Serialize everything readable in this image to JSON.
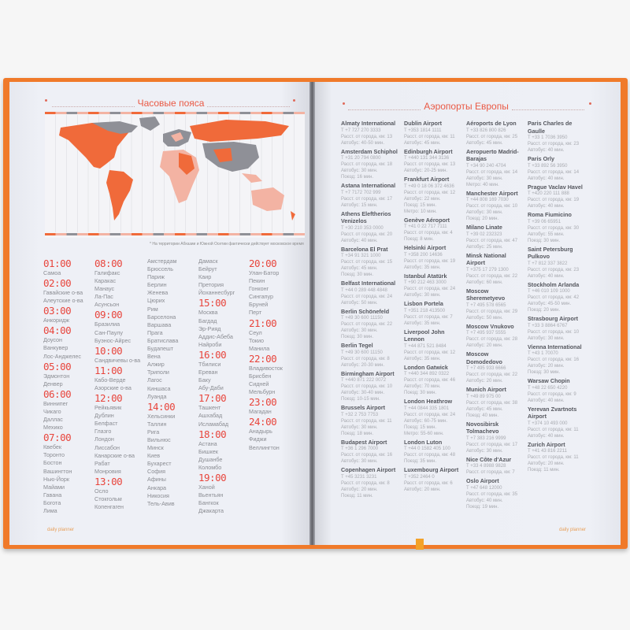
{
  "left_page": {
    "title": "Часовые пояса",
    "footnote": "* На территории Абхазии и Южной Осетии фактически действует московское время",
    "footer": "daily planner",
    "colors": {
      "accent": "#e8453c",
      "map_orange": "#f06a3a",
      "map_pink": "#f3b3a3",
      "map_gray": "#8f9097"
    },
    "timezones": [
      [
        {
          "hour": "01:00",
          "cities": [
            "Самоа"
          ]
        },
        {
          "hour": "02:00",
          "cities": [
            "Гавайские о-ва",
            "Алеутские о-ва"
          ]
        },
        {
          "hour": "03:00",
          "cities": [
            "Анкоридж"
          ]
        },
        {
          "hour": "04:00",
          "cities": [
            "Доусон",
            "Ванкувер",
            "Лос-Анджелес"
          ]
        },
        {
          "hour": "05:00",
          "cities": [
            "Эдмонтон",
            "Денвер"
          ]
        },
        {
          "hour": "06:00",
          "cities": [
            "Виннипег",
            "Чикаго",
            "Даллас",
            "Мехико"
          ]
        },
        {
          "hour": "07:00",
          "cities": [
            "Квебек",
            "Торонто",
            "Бостон",
            "Вашингтон",
            "Нью-Йорк",
            "Майами",
            "Гавана",
            "Богота",
            "Лима"
          ]
        }
      ],
      [
        {
          "hour": "08:00",
          "cities": [
            "Галифакс",
            "Каракас",
            "Манаус",
            "Ла-Пас",
            "Асунсьон"
          ]
        },
        {
          "hour": "09:00",
          "cities": [
            "Бразилиа",
            "Сан-Паулу",
            "Буэнос-Айрес"
          ]
        },
        {
          "hour": "10:00",
          "cities": [
            "Сандвичевы о-ва"
          ]
        },
        {
          "hour": "11:00",
          "cities": [
            "Кабо-Верде",
            "Азорские о-ва"
          ]
        },
        {
          "hour": "12:00",
          "cities": [
            "Рейкьявик",
            "Дублин",
            "Белфаст",
            "Глазго",
            "Лондон",
            "Лиссабон",
            "Канарские о-ва",
            "Рабат",
            "Монровия"
          ]
        },
        {
          "hour": "13:00",
          "cities": [
            "Осло",
            "Стокгольм",
            "Копенгаген"
          ]
        }
      ],
      [
        {
          "hour": "",
          "cities": [
            "Амстердам",
            "Брюссель",
            "Париж",
            "Берлин",
            "Женева",
            "Цюрих",
            "Рим",
            "Барселона",
            "Варшава",
            "Прага",
            "Братислава",
            "Будапешт",
            "Вена",
            "Алжир",
            "Триполи",
            "Лагос",
            "Киншаса",
            "Луанда"
          ]
        },
        {
          "hour": "14:00",
          "cities": [
            "Хельсинки",
            "Таллин",
            "Рига",
            "Вильнюс",
            "Минск",
            "Киев",
            "Бухарест",
            "София",
            "Афины",
            "Анкара",
            "Никосия",
            "Тель-Авив"
          ]
        }
      ],
      [
        {
          "hour": "",
          "cities": [
            "Дамаск",
            "Бейрут",
            "Каир",
            "Претория",
            "Йоханнесбург"
          ]
        },
        {
          "hour": "15:00",
          "cities": [
            "Москва",
            "Багдад",
            "Эр-Рияд",
            "Аддис-Абеба",
            "Найроби"
          ]
        },
        {
          "hour": "16:00",
          "cities": [
            "Тбилиси",
            "Ереван",
            "Баку",
            "Абу-Даби"
          ]
        },
        {
          "hour": "17:00",
          "cities": [
            "Ташкент",
            "Ашхабад",
            "Исламабад"
          ]
        },
        {
          "hour": "18:00",
          "cities": [
            "Астана",
            "Бишкек",
            "Душанбе",
            "Коломбо"
          ]
        },
        {
          "hour": "19:00",
          "cities": [
            "Ханой",
            "Вьентьян",
            "Бангкок",
            "Джакарта"
          ]
        }
      ],
      [
        {
          "hour": "20:00",
          "cities": [
            "Улан-Батор",
            "Пекин",
            "Гонконг",
            "Сингапур",
            "Бруней",
            "Перт"
          ]
        },
        {
          "hour": "21:00",
          "cities": [
            "Сеул",
            "Токио",
            "Манила"
          ]
        },
        {
          "hour": "22:00",
          "cities": [
            "Владивосток",
            "Брисбен",
            "Сидней",
            "Мельбурн"
          ]
        },
        {
          "hour": "23:00",
          "cities": [
            "Магадан"
          ]
        },
        {
          "hour": "24:00",
          "cities": [
            "Анадырь",
            "Фиджи",
            "Веллингтон"
          ]
        }
      ]
    ]
  },
  "right_page": {
    "title": "Аэропорты Европы",
    "footer": "daily planner",
    "airports": [
      [
        {
          "name": "Almaty International",
          "lines": [
            "T +7 727 270 3333",
            "Расст. от города, км: 13",
            "Автобус: 40-50 мин."
          ]
        },
        {
          "name": "Amsterdam Schiphol",
          "lines": [
            "T +31 20 794 0800",
            "Расст. от города, км: 18",
            "Автобус: 30 мин.",
            "Поезд: 16 мин."
          ]
        },
        {
          "name": "Astana International",
          "lines": [
            "T +7 7172 702 999",
            "Расст. от города, км: 17",
            "Автобус: 15 мин."
          ]
        },
        {
          "name": "Athens Eleftherios Venizelos",
          "lines": [
            "T +30 210 353 0000",
            "Расст. от города, км: 20",
            "Автобус: 40 мин."
          ]
        },
        {
          "name": "Barcelona El Prat",
          "lines": [
            "T +34 91 321 1000",
            "Расст. от города, км: 15",
            "Автобус: 45 мин.",
            "Поезд: 30 мин."
          ]
        },
        {
          "name": "Belfast International",
          "lines": [
            "T +44 0 289 448 4848",
            "Расст. от города, км: 24",
            "Автобус: 50 мин."
          ]
        },
        {
          "name": "Berlin Schönefeld",
          "lines": [
            "T +49 30 600 11150",
            "Расст. от города, км: 22",
            "Автобус: 30 мин.",
            "Поезд: 30 мин."
          ]
        },
        {
          "name": "Berlin Tegel",
          "lines": [
            "T +49 30 600 11150",
            "Расст. от города, км: 8",
            "Автобус: 20-30 мин."
          ]
        },
        {
          "name": "Birmingham Airport",
          "lines": [
            "T +440 871 222 0072",
            "Расст. от города, км: 10",
            "Автобус: 30-40 мин.",
            "Поезд: 10-15 мин."
          ]
        },
        {
          "name": "Brussels Airport",
          "lines": [
            "T +32 2 753 7753",
            "Расст. от города, км: 11",
            "Автобус: 30 мин.",
            "Поезд: 18 мин."
          ]
        },
        {
          "name": "Budapest Airport",
          "lines": [
            "T +36 1 296 7000",
            "Расст. от города, км: 16",
            "Автобус: 30 мин."
          ]
        },
        {
          "name": "Copenhagen Airport",
          "lines": [
            "T +45 3231 3231",
            "Расст. от города, км: 8",
            "Автобус: 20 мин.",
            "Поезд: 11 мин."
          ]
        }
      ],
      [
        {
          "name": "Dublin Airport",
          "lines": [
            "T +353 1814 1111",
            "Расст. от города, км: 11",
            "Автобус: 45 мин."
          ]
        },
        {
          "name": "Edinburgh Airport",
          "lines": [
            "T +440 131 344 3136",
            "Расст. от города, км: 13",
            "Автобус: 20-25 мин."
          ]
        },
        {
          "name": "Frankfurt Airport",
          "lines": [
            "T +49 0 18 06 372 4636",
            "Расст. от города, км: 12",
            "Автобус: 22 мин.",
            "Поезд: 15 мин.",
            "Метро: 10 мин."
          ]
        },
        {
          "name": "Genève Aéroport",
          "lines": [
            "T +41 0 22 717 7111",
            "Расст. от города, км: 4",
            "Поезд: 8 мин."
          ]
        },
        {
          "name": "Helsinki Airport",
          "lines": [
            "T +358 200 14636",
            "Расст. от города, км: 19",
            "Автобус: 35 мин."
          ]
        },
        {
          "name": "Istanbul Atatürk",
          "lines": [
            "T +90 212 463 3000",
            "Расст. от города, км: 24",
            "Автобус: 30 мин."
          ]
        },
        {
          "name": "Lisbon Portela",
          "lines": [
            "T +351 218 413500",
            "Расст. от города, км: 7",
            "Автобус: 35 мин."
          ]
        },
        {
          "name": "Liverpool John Lennon",
          "lines": [
            "T +44 871 521 8484",
            "Расст. от города, км: 12",
            "Автобус: 35 мин."
          ]
        },
        {
          "name": "London Gatwick",
          "lines": [
            "T +440 344 892 0322",
            "Расст. от города, км: 46",
            "Автобус: 70 мин.",
            "Поезд: 30 мин."
          ]
        },
        {
          "name": "London Heathrow",
          "lines": [
            "T +44 0844 335 1801",
            "Расст. от города, км: 24",
            "Автобус: 60-75 мин.",
            "Поезд: 15 мин.",
            "Метро: 55-60 мин."
          ]
        },
        {
          "name": "London Luton",
          "lines": [
            "T +44 0 1582 405 100",
            "Расст. от города, км: 48",
            "Поезд: 35 мин."
          ]
        },
        {
          "name": "Luxembourg Airport",
          "lines": [
            "T +352 2464 0",
            "Расст. от города, км: 6",
            "Автобус: 20 мин."
          ]
        }
      ],
      [
        {
          "name": "Aéroports de Lyon",
          "lines": [
            "T +33 826 800 826",
            "Расст. от города, км: 25",
            "Автобус: 45 мин."
          ]
        },
        {
          "name": "Aeropuerto Madrid-Barajas",
          "lines": [
            "T +34 90 240 4704",
            "Расст. от города, км: 14",
            "Автобус: 30 мин.",
            "Метро: 40 мин."
          ]
        },
        {
          "name": "Manchester Airport",
          "lines": [
            "T +44 808 169 7030",
            "Расст. от города, км: 10",
            "Автобус: 30 мин.",
            "Поезд: 20 мин."
          ]
        },
        {
          "name": "Milano Linate",
          "lines": [
            "T +39 02 232323",
            "Расст. от города, км: 47",
            "Автобус: 25 мин."
          ]
        },
        {
          "name": "Minsk National Airport",
          "lines": [
            "T +375 17 279 1300",
            "Расст. от города, км: 22",
            "Автобус: 60 мин."
          ]
        },
        {
          "name": "Moscow Sheremetyevo",
          "lines": [
            "T +7 495 578 6565",
            "Расст. от города, км: 29",
            "Автобус: 50 мин."
          ]
        },
        {
          "name": "Moscow Vnukovo",
          "lines": [
            "T +7 495 937 5555",
            "Расст. от города, км: 28",
            "Автобус: 20 мин."
          ]
        },
        {
          "name": "Moscow Domodedovo",
          "lines": [
            "T +7 495 933 6666",
            "Расст. от города, км: 22",
            "Автобус: 20 мин."
          ]
        },
        {
          "name": "Munich Airport",
          "lines": [
            "T +49 89 975 00",
            "Расст. от города, км: 38",
            "Автобус: 45 мин.",
            "Поезд: 40 мин."
          ]
        },
        {
          "name": "Novosibirsk Tolmachevo",
          "lines": [
            "T +7 383 216 9999",
            "Расст. от города, км: 17",
            "Автобус: 30 мин."
          ]
        },
        {
          "name": "Nice Côte d'Azur",
          "lines": [
            "T +33 4 8988 9828",
            "Расст. от города, км: 7"
          ]
        },
        {
          "name": "Oslo Airport",
          "lines": [
            "T +47 648 12000",
            "Расст. от города, км: 35",
            "Автобус: 40 мин.",
            "Поезд: 19 мин."
          ]
        }
      ],
      [
        {
          "name": "Paris Charles de Gaulle",
          "lines": [
            "T +33 1 7036 3950",
            "Расст. от города, км: 23",
            "Автобус: 40 мин."
          ]
        },
        {
          "name": "Paris Orly",
          "lines": [
            "T +33 892 56 3950",
            "Расст. от города, км: 14",
            "Автобус: 40 мин."
          ]
        },
        {
          "name": "Prague Vaclav Havel",
          "lines": [
            "T +420 220 111 888",
            "Расст. от города, км: 19",
            "Автобус: 40 мин."
          ]
        },
        {
          "name": "Roma Fiumicino",
          "lines": [
            "T +39 06 65951",
            "Расст. от города, км: 30",
            "Автобус: 55 мин.",
            "Поезд: 30 мин."
          ]
        },
        {
          "name": "Saint Petersburg Pulkovo",
          "lines": [
            "T +7 812 337 3822",
            "Расст. от города, км: 23",
            "Автобус: 40 мин."
          ]
        },
        {
          "name": "Stockholm Arlanda",
          "lines": [
            "T +46 010 109 1000",
            "Расст. от города, км: 42",
            "Автобус: 45-50 мин.",
            "Поезд: 20 мин."
          ]
        },
        {
          "name": "Strasbourg Airport",
          "lines": [
            "T +33 3 8864 6767",
            "Расст. от города, км: 10",
            "Автобус: 30 мин."
          ]
        },
        {
          "name": "Vienna International",
          "lines": [
            "T +43 1 70070",
            "Расст. от города, км: 16",
            "Автобус: 20 мин.",
            "Поезд: 30 мин."
          ]
        },
        {
          "name": "Warsaw Chopin",
          "lines": [
            "T +48 22 650 4220",
            "Расст. от города, км: 9",
            "Автобус: 40 мин."
          ]
        },
        {
          "name": "Yerevan Zvartnots Airport",
          "lines": [
            "T +374 10 493 000",
            "Расст. от города, км: 11",
            "Автобус: 40 мин."
          ]
        },
        {
          "name": "Zurich Airport",
          "lines": [
            "T +41 43 816 2211",
            "Расст. от города, км: 11",
            "Автобус: 20 мин.",
            "Поезд: 11 мин."
          ]
        }
      ]
    ]
  }
}
